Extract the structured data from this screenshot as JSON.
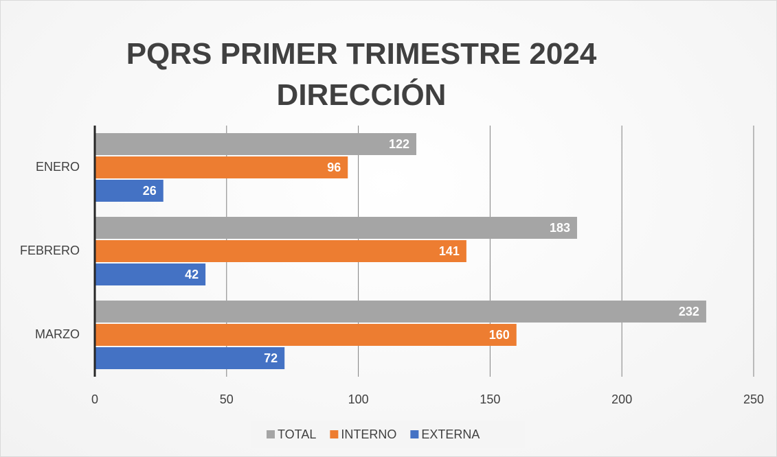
{
  "chart_data": {
    "type": "barh",
    "title": "PQRS PRIMER TRIMESTRE 2024 DIRECCIÓN",
    "categories": [
      "ENERO",
      "FEBRERO",
      "MARZO"
    ],
    "series": [
      {
        "name": "TOTAL",
        "color": "#a5a5a5",
        "values": [
          122,
          183,
          232
        ]
      },
      {
        "name": "INTERNO",
        "color": "#ed7d31",
        "values": [
          96,
          141,
          160
        ]
      },
      {
        "name": "EXTERNA",
        "color": "#4472c4",
        "values": [
          26,
          42,
          72
        ]
      }
    ],
    "xlim": [
      0,
      250
    ],
    "xticks": [
      0,
      50,
      100,
      150,
      200,
      250
    ],
    "grid": true,
    "legend": "bottom"
  }
}
